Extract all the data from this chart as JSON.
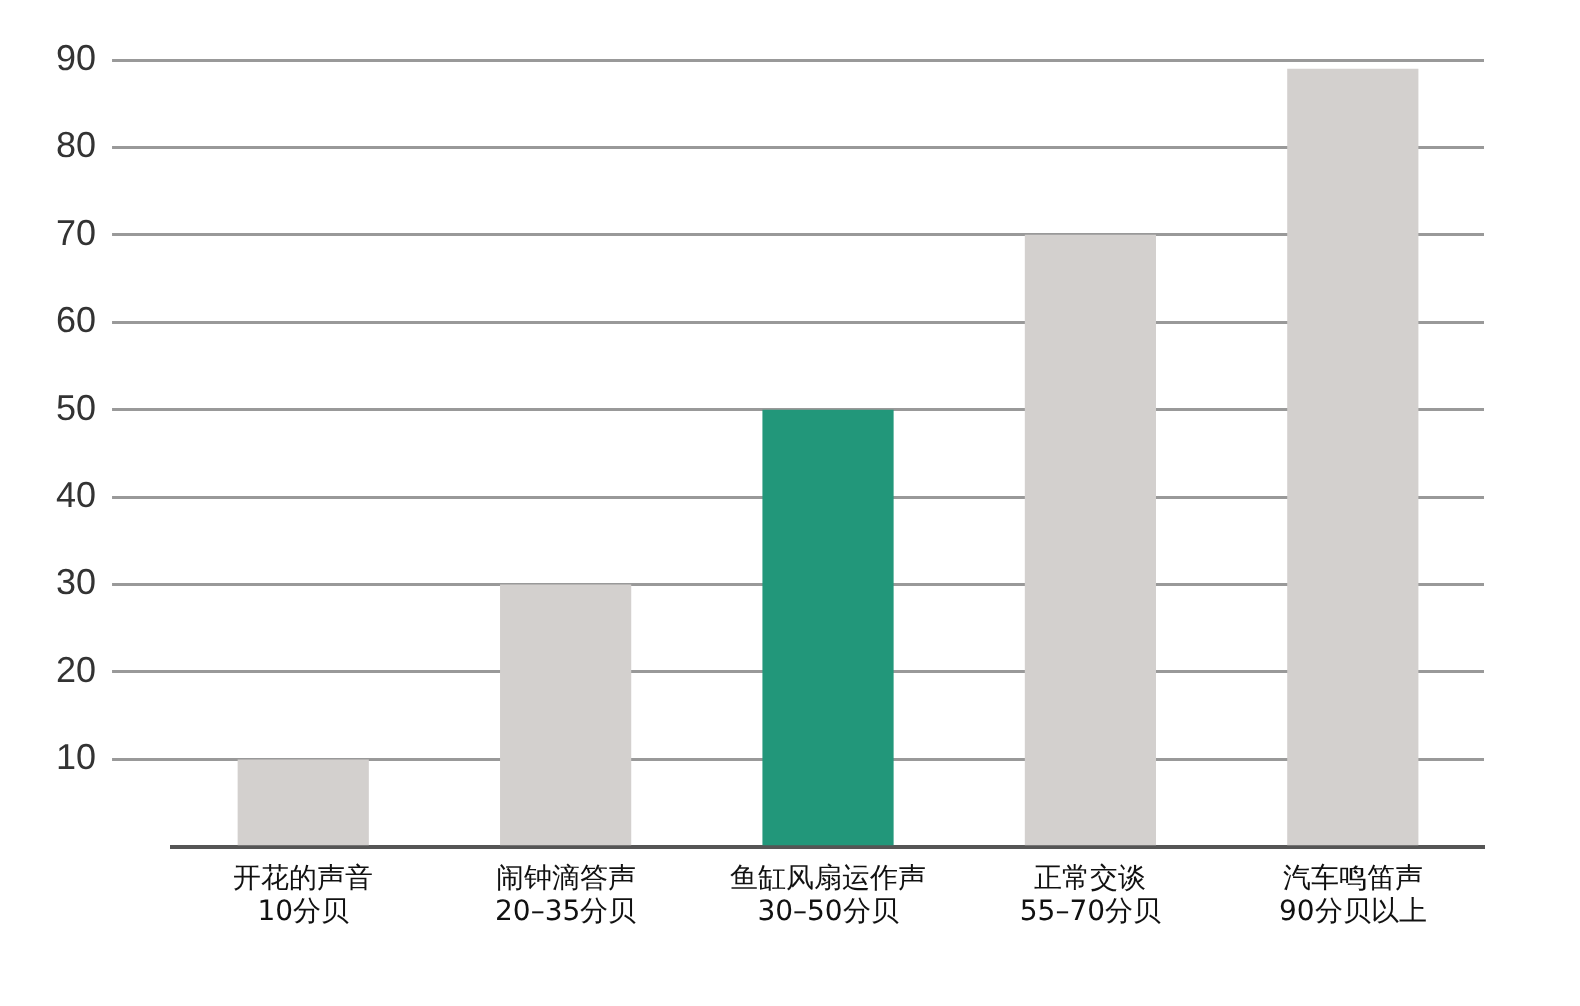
{
  "chart_data": {
    "type": "bar",
    "categories": [
      "开花的声音\n10分贝",
      "闹钟滴答声\n20–35分贝",
      "鱼缸风扇运作声\n30–50分贝",
      "正常交谈\n55–70分贝",
      "汽车鸣笛声\n90分贝以上"
    ],
    "values": [
      10,
      30,
      50,
      70,
      89
    ],
    "colors": [
      "#d3d0ce",
      "#d3d0ce",
      "#22977a",
      "#d3d0ce",
      "#d3d0ce"
    ],
    "ylim": [
      0,
      90
    ],
    "yticks": [
      {
        "value": 0,
        "label": null
      },
      10,
      20,
      30,
      40,
      50,
      60,
      70,
      80,
      90
    ],
    "grid": "y"
  }
}
